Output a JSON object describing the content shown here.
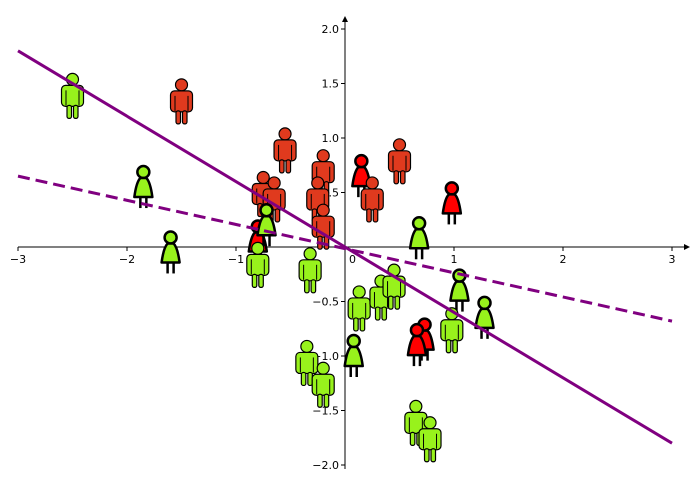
{
  "chart_data": {
    "type": "scatter",
    "title": "",
    "xlabel": "",
    "ylabel": "",
    "xlim": [
      -3,
      3
    ],
    "ylim": [
      -2,
      2.1
    ],
    "x_ticks": [
      -3,
      -2,
      -1,
      0,
      1,
      2,
      3
    ],
    "x_tick_labels": [
      "−3",
      "−2",
      "−1",
      "0",
      "1",
      "2",
      "3"
    ],
    "y_ticks": [
      -2.0,
      -1.5,
      -1.0,
      -0.5,
      0.5,
      1.0,
      1.5,
      2.0
    ],
    "y_tick_labels": [
      "−2.0",
      "−1.5",
      "−1.0",
      "−0.5",
      "0.5",
      "1.0",
      "1.5",
      "2.0"
    ],
    "grid": false,
    "legend": "none",
    "colors": {
      "red_group": "#e03a1e",
      "green_group": "#98f21c",
      "line": "#800080"
    },
    "lines": [
      {
        "style": "solid",
        "x": [
          -3,
          3
        ],
        "y": [
          1.8,
          -1.8
        ]
      },
      {
        "style": "dashed",
        "x": [
          -3,
          3
        ],
        "y": [
          0.65,
          -0.68
        ]
      }
    ],
    "series": [
      {
        "color": "red",
        "points": [
          {
            "x": -1.5,
            "y": 1.35,
            "shape": "male"
          },
          {
            "x": -0.55,
            "y": 0.9,
            "shape": "male"
          },
          {
            "x": -0.75,
            "y": 0.5,
            "shape": "male"
          },
          {
            "x": -0.65,
            "y": 0.45,
            "shape": "male"
          },
          {
            "x": -0.2,
            "y": 0.7,
            "shape": "male"
          },
          {
            "x": -0.25,
            "y": 0.45,
            "shape": "male"
          },
          {
            "x": -0.2,
            "y": 0.2,
            "shape": "male"
          },
          {
            "x": -0.8,
            "y": 0.05,
            "shape": "female"
          },
          {
            "x": 0.15,
            "y": 0.65,
            "shape": "female"
          },
          {
            "x": 0.25,
            "y": 0.45,
            "shape": "male"
          },
          {
            "x": 0.5,
            "y": 0.8,
            "shape": "male"
          },
          {
            "x": 0.98,
            "y": 0.4,
            "shape": "female"
          },
          {
            "x": 0.73,
            "y": -0.85,
            "shape": "female"
          },
          {
            "x": 0.66,
            "y": -0.9,
            "shape": "female"
          }
        ]
      },
      {
        "color": "green",
        "points": [
          {
            "x": -2.5,
            "y": 1.4,
            "shape": "male"
          },
          {
            "x": -1.85,
            "y": 0.55,
            "shape": "female"
          },
          {
            "x": -1.6,
            "y": -0.05,
            "shape": "female"
          },
          {
            "x": -0.72,
            "y": 0.2,
            "shape": "female"
          },
          {
            "x": -0.8,
            "y": -0.15,
            "shape": "male"
          },
          {
            "x": -0.32,
            "y": -0.2,
            "shape": "male"
          },
          {
            "x": 0.68,
            "y": 0.08,
            "shape": "female"
          },
          {
            "x": 0.13,
            "y": -0.55,
            "shape": "male"
          },
          {
            "x": 0.33,
            "y": -0.45,
            "shape": "male"
          },
          {
            "x": 0.45,
            "y": -0.35,
            "shape": "male"
          },
          {
            "x": 1.05,
            "y": -0.4,
            "shape": "female"
          },
          {
            "x": 0.98,
            "y": -0.75,
            "shape": "male"
          },
          {
            "x": 1.28,
            "y": -0.65,
            "shape": "female"
          },
          {
            "x": -0.35,
            "y": -1.05,
            "shape": "male"
          },
          {
            "x": -0.2,
            "y": -1.25,
            "shape": "male"
          },
          {
            "x": 0.08,
            "y": -1.0,
            "shape": "female"
          },
          {
            "x": 0.65,
            "y": -1.6,
            "shape": "male"
          },
          {
            "x": 0.78,
            "y": -1.75,
            "shape": "male"
          }
        ]
      }
    ]
  }
}
